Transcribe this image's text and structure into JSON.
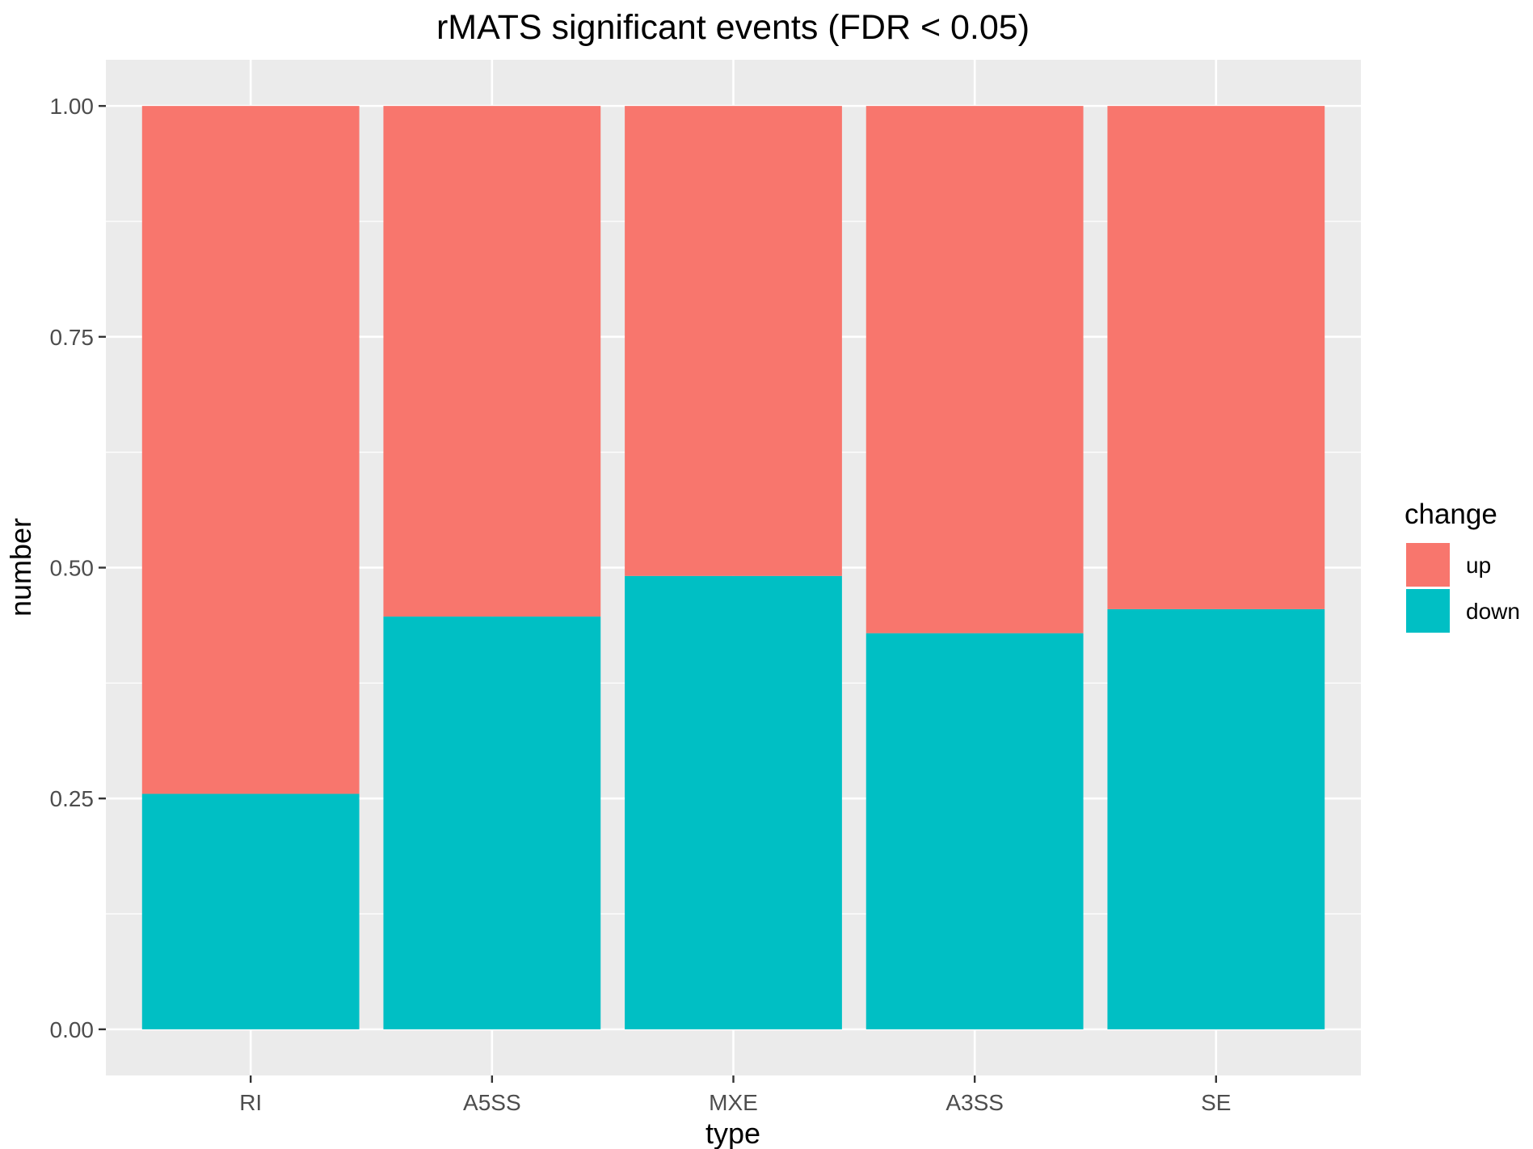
{
  "chart_data": {
    "type": "bar",
    "stacked": true,
    "title": "rMATS significant events (FDR < 0.05)",
    "xlabel": "type",
    "ylabel": "number",
    "categories": [
      "RI",
      "A5SS",
      "MXE",
      "A3SS",
      "SE"
    ],
    "series": [
      {
        "name": "down",
        "color": "#00BFC4",
        "values": [
          0.255,
          0.447,
          0.491,
          0.429,
          0.455
        ]
      },
      {
        "name": "up",
        "color": "#F8766D",
        "values": [
          0.745,
          0.553,
          0.509,
          0.571,
          0.545
        ]
      }
    ],
    "ylim": [
      -0.05,
      1.05
    ],
    "yticks": [
      "0.00",
      "0.25",
      "0.50",
      "0.75",
      "1.00"
    ],
    "grid": true,
    "legend": {
      "title": "change",
      "position": "right",
      "entries": [
        {
          "label": "up",
          "color": "#F8766D"
        },
        {
          "label": "down",
          "color": "#00BFC4"
        }
      ]
    },
    "panel_background": "#EBEBEB"
  }
}
